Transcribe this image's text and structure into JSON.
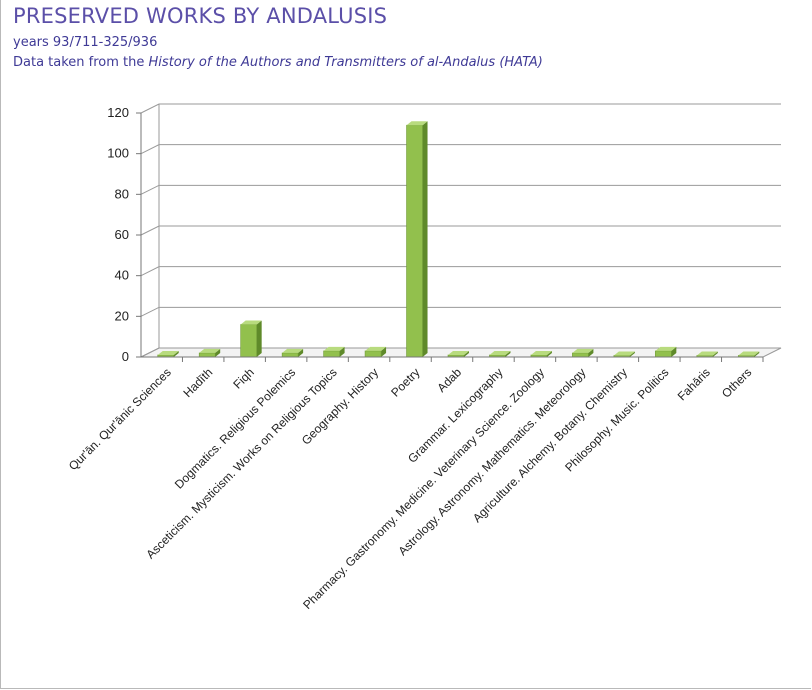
{
  "header": {
    "title": "PRESERVED WORKS BY ANDALUSIS",
    "subtitle": "years 93/711-325/936",
    "source_prefix": "Data taken from  the ",
    "source_title": "History of the Authors and Transmitters of al-Andalus (HATA)"
  },
  "colors": {
    "bar_front": "#92c04d",
    "bar_side": "#5f8a2a",
    "bar_top": "#b8db7e",
    "grid": "#9a9a9a",
    "title": "#5b4fa8"
  },
  "chart_data": {
    "type": "bar",
    "title": "PRESERVED WORKS BY ANDALUSIS",
    "xlabel": "",
    "ylabel": "",
    "ylim": [
      0,
      120
    ],
    "yticks": [
      0,
      20,
      40,
      60,
      80,
      100,
      120
    ],
    "grid": true,
    "legend": "none",
    "categories": [
      "Qur'ān. Qur'ānic Sciences",
      "Hadīth",
      "Fiqh",
      "Dogmatics. Religious Polemics",
      "Asceticism. Mysticism. Works on Religious Topics",
      "Geography. History",
      "Poetry",
      "Adab",
      "Grammar. Lexicography",
      "Pharmacy. Gastronomy. Medicine. Veterinary Science. Zoology",
      "Astrology. Astronomy. Mathematics. Meteorology",
      "Agriculture. Alchemy. Botany. Chemistry",
      "Philosophy. Music. Politics",
      "Fahāris",
      "Others"
    ],
    "values": [
      1,
      2,
      16,
      2,
      3,
      3,
      114,
      1,
      1,
      1,
      2,
      0,
      3,
      0,
      0
    ]
  }
}
